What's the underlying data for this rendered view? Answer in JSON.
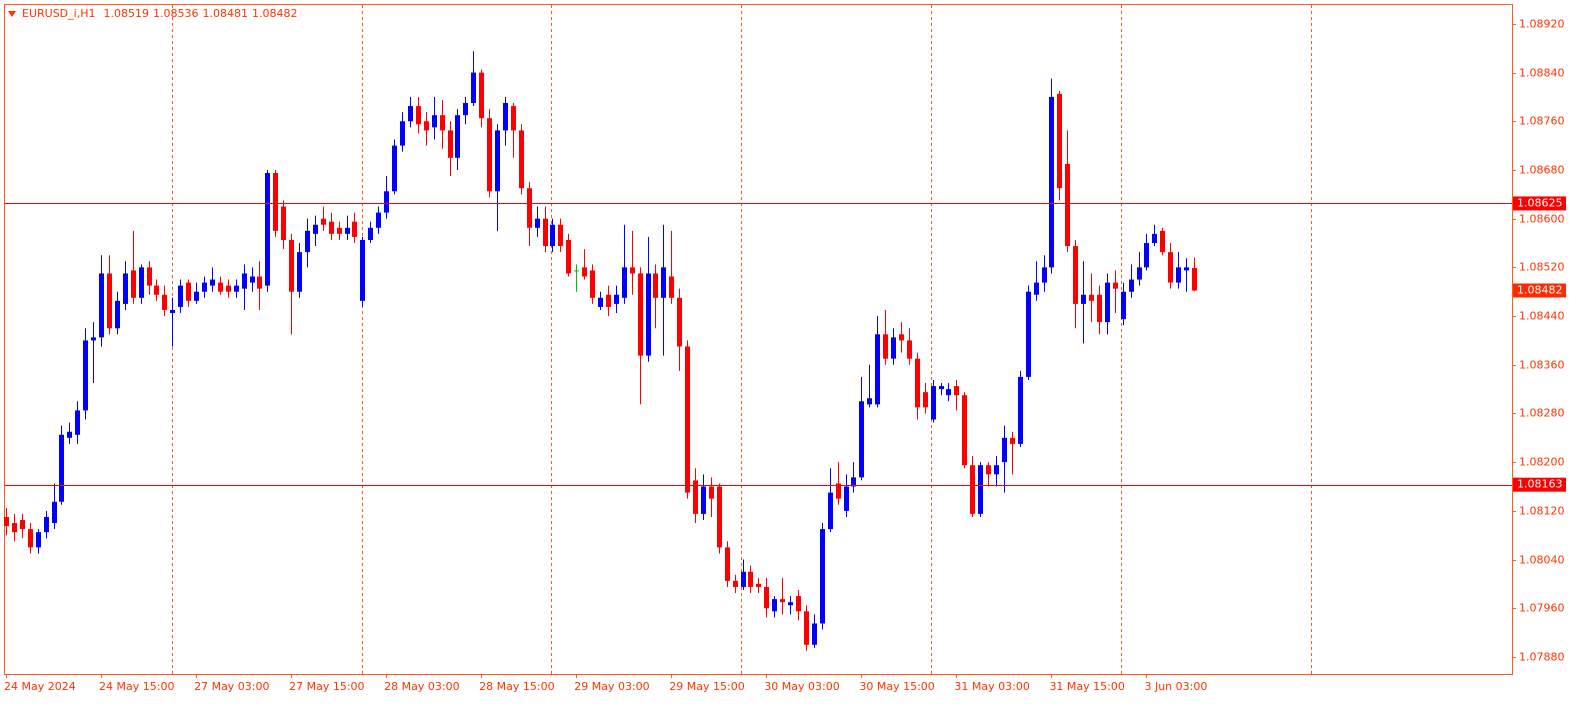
{
  "chart_data": {
    "type": "candlestick",
    "title": "EURUSD_i,H1",
    "categories": [
      "24 May 2024",
      null,
      null,
      null,
      null,
      null,
      null,
      null,
      null,
      null,
      null,
      null,
      "24 May 15:00",
      null,
      null,
      null,
      null,
      null,
      null,
      null,
      null,
      null,
      null,
      null,
      "27 May 03:00",
      null,
      null,
      null,
      null,
      null,
      null,
      null,
      null,
      null,
      null,
      null,
      "27 May 15:00",
      null,
      null,
      null,
      null,
      null,
      null,
      null,
      null,
      null,
      null,
      null,
      "28 May 03:00",
      null,
      null,
      null,
      null,
      null,
      null,
      null,
      null,
      null,
      null,
      null,
      "28 May 15:00",
      null,
      null,
      null,
      null,
      null,
      null,
      null,
      null,
      null,
      null,
      null,
      "29 May 03:00",
      null,
      null,
      null,
      null,
      null,
      null,
      null,
      null,
      null,
      null,
      null,
      "29 May 15:00",
      null,
      null,
      null,
      null,
      null,
      null,
      null,
      null,
      null,
      null,
      null,
      "30 May 03:00",
      null,
      null,
      null,
      null,
      null,
      null,
      null,
      null,
      null,
      null,
      null,
      "30 May 15:00",
      null,
      null,
      null,
      null,
      null,
      null,
      null,
      null,
      null,
      null,
      null,
      "31 May 03:00",
      null,
      null,
      null,
      null,
      null,
      null,
      null,
      null,
      null,
      null,
      null,
      "31 May 15:00",
      null,
      null,
      null,
      null,
      null,
      null,
      null,
      null,
      null,
      null,
      null,
      "3 Jun 03:00",
      null,
      null,
      null,
      null,
      null,
      null
    ],
    "open": [
      1.0811,
      1.081,
      1.08105,
      1.0809,
      1.0806,
      1.08085,
      1.081,
      1.08135,
      1.0824,
      1.08245,
      1.08285,
      1.084,
      1.08405,
      1.0851,
      1.0842,
      1.0846,
      1.08515,
      1.0847,
      1.0852,
      1.0849,
      1.08475,
      1.08445,
      1.08455,
      1.08495,
      1.08465,
      1.0848,
      1.0849,
      1.08495,
      1.0849,
      1.0848,
      1.08485,
      1.08495,
      1.08505,
      1.0849,
      1.08675,
      1.0862,
      1.08565,
      1.0848,
      1.08545,
      1.08575,
      1.086,
      1.08595,
      1.08585,
      1.08575,
      1.08595,
      1.08465,
      1.08565,
      1.08585,
      1.0861,
      1.08645,
      1.0872,
      1.0876,
      1.08785,
      1.0876,
      1.0875,
      1.0877,
      1.08745,
      1.087,
      1.0877,
      1.0879,
      1.0884,
      1.08765,
      1.08645,
      1.08745,
      1.08785,
      1.08745,
      1.0865,
      1.08585,
      1.086,
      1.08555,
      1.0859,
      1.08565,
      1.08515,
      1.0852,
      1.08515,
      1.08455,
      1.08475,
      1.0846,
      1.0847,
      1.0852,
      1.0851,
      1.08375,
      1.0851,
      1.0847,
      1.08505,
      1.0847,
      1.0839,
      1.0817,
      1.08115,
      1.0816,
      1.0816,
      1.0806,
      1.08005,
      1.07995,
      1.0802,
      1.08,
      1.07995,
      1.07955,
      1.07975,
      1.07965,
      1.0798,
      1.07955,
      1.079,
      1.07935,
      1.0809,
      1.08165,
      1.0812,
      1.0816,
      1.08175,
      1.08295,
      1.08295,
      1.0841,
      1.0837,
      1.0841,
      1.084,
      1.0837,
      1.08315,
      1.0827,
      1.0832,
      1.0831,
      1.08325,
      1.0831,
      1.08195,
      1.08115,
      1.08195,
      1.0818,
      1.082,
      1.0824,
      1.0823,
      1.0834,
      1.08475,
      1.08495,
      1.0852,
      1.08805,
      1.0869,
      1.08555,
      1.0846,
      1.08475,
      1.08475,
      1.0843,
      1.08495,
      1.08435,
      1.0848,
      1.085,
      1.0852,
      1.0856,
      1.0858,
      1.08545,
      1.08495,
      1.08515,
      1.08519
    ],
    "high": [
      1.08125,
      1.08115,
      1.08115,
      1.081,
      1.0809,
      1.0812,
      1.08165,
      1.0826,
      1.08265,
      1.083,
      1.0842,
      1.0843,
      1.0854,
      1.0854,
      1.0848,
      1.0853,
      1.0858,
      1.08525,
      1.0853,
      1.085,
      1.0849,
      1.0847,
      1.085,
      1.085,
      1.08495,
      1.08505,
      1.0852,
      1.08505,
      1.085,
      1.085,
      1.08525,
      1.0852,
      1.0853,
      1.0868,
      1.0868,
      1.0863,
      1.08575,
      1.0856,
      1.086,
      1.08605,
      1.0862,
      1.0861,
      1.08595,
      1.08605,
      1.0861,
      1.0857,
      1.08595,
      1.0862,
      1.0867,
      1.0873,
      1.08775,
      1.088,
      1.088,
      1.08775,
      1.088,
      1.08795,
      1.0876,
      1.0878,
      1.088,
      1.08875,
      1.08845,
      1.0878,
      1.08755,
      1.088,
      1.0879,
      1.08755,
      1.0866,
      1.0862,
      1.0862,
      1.086,
      1.086,
      1.08575,
      1.08525,
      1.0855,
      1.08525,
      1.0848,
      1.0849,
      1.0849,
      1.0859,
      1.0858,
      1.0852,
      1.0857,
      1.08525,
      1.0859,
      1.0858,
      1.08485,
      1.084,
      1.0819,
      1.0818,
      1.08175,
      1.08165,
      1.0807,
      1.08015,
      1.0804,
      1.0803,
      1.0801,
      1.0801,
      1.0798,
      1.0801,
      1.0798,
      1.0799,
      1.07965,
      1.0795,
      1.081,
      1.0819,
      1.082,
      1.0818,
      1.082,
      1.0834,
      1.0836,
      1.0844,
      1.0845,
      1.0842,
      1.0843,
      1.0842,
      1.0838,
      1.0833,
      1.08335,
      1.0833,
      1.0833,
      1.08335,
      1.08315,
      1.0821,
      1.082,
      1.082,
      1.0821,
      1.0826,
      1.0825,
      1.0835,
      1.0849,
      1.0853,
      1.0854,
      1.0883,
      1.0881,
      1.08745,
      1.08565,
      1.0853,
      1.0851,
      1.0849,
      1.0851,
      1.08515,
      1.08495,
      1.08525,
      1.08545,
      1.08575,
      1.0859,
      1.08585,
      1.0856,
      1.08545,
      1.08535,
      1.08536
    ],
    "low": [
      1.0808,
      1.0807,
      1.08075,
      1.0805,
      1.0805,
      1.08075,
      1.0809,
      1.0813,
      1.0823,
      1.0823,
      1.0827,
      1.0833,
      1.0839,
      1.0841,
      1.0841,
      1.0845,
      1.0846,
      1.0846,
      1.08475,
      1.08465,
      1.0844,
      1.0839,
      1.08445,
      1.08455,
      1.0846,
      1.0847,
      1.0848,
      1.08475,
      1.0847,
      1.0847,
      1.0845,
      1.0848,
      1.0845,
      1.0848,
      1.0857,
      1.0855,
      1.0841,
      1.0847,
      1.0852,
      1.08555,
      1.0858,
      1.08565,
      1.08565,
      1.08565,
      1.0856,
      1.08455,
      1.0856,
      1.08575,
      1.086,
      1.0864,
      1.0871,
      1.0875,
      1.0874,
      1.0872,
      1.0873,
      1.08715,
      1.0867,
      1.0868,
      1.08755,
      1.08785,
      1.0875,
      1.08635,
      1.0858,
      1.0872,
      1.087,
      1.0864,
      1.08555,
      1.0857,
      1.08545,
      1.08545,
      1.08545,
      1.08505,
      1.0848,
      1.085,
      1.0846,
      1.0845,
      1.0844,
      1.08445,
      1.0846,
      1.08475,
      1.08295,
      1.08365,
      1.0842,
      1.08375,
      1.0846,
      1.0835,
      1.0814,
      1.081,
      1.08105,
      1.0811,
      1.0805,
      1.07995,
      1.07985,
      1.0799,
      1.07985,
      1.07985,
      1.07945,
      1.07945,
      1.0795,
      1.0795,
      1.0794,
      1.0789,
      1.07895,
      1.07925,
      1.08085,
      1.0813,
      1.0811,
      1.0815,
      1.0817,
      1.0829,
      1.0829,
      1.0836,
      1.0836,
      1.0838,
      1.0836,
      1.0827,
      1.0828,
      1.08265,
      1.0831,
      1.083,
      1.08285,
      1.0819,
      1.0811,
      1.0811,
      1.0816,
      1.0816,
      1.0815,
      1.0818,
      1.08225,
      1.08335,
      1.08465,
      1.0848,
      1.0851,
      1.0863,
      1.08545,
      1.0842,
      1.08395,
      1.0843,
      1.0841,
      1.0841,
      1.08445,
      1.08425,
      1.0847,
      1.0849,
      1.08515,
      1.08555,
      1.0854,
      1.08485,
      1.08485,
      1.0848,
      1.08481
    ],
    "close": [
      1.08095,
      1.08085,
      1.0809,
      1.0806,
      1.08085,
      1.0811,
      1.08135,
      1.08245,
      1.0825,
      1.08285,
      1.084,
      1.08405,
      1.0851,
      1.0842,
      1.08465,
      1.0851,
      1.0847,
      1.0852,
      1.0849,
      1.08475,
      1.0845,
      1.0845,
      1.0849,
      1.08465,
      1.0848,
      1.08495,
      1.085,
      1.0848,
      1.0848,
      1.0849,
      1.0851,
      1.08505,
      1.08485,
      1.08675,
      1.0858,
      1.08565,
      1.0848,
      1.08545,
      1.0858,
      1.0859,
      1.0859,
      1.08575,
      1.08575,
      1.08585,
      1.0857,
      1.08565,
      1.08585,
      1.0861,
      1.08645,
      1.0872,
      1.0876,
      1.08785,
      1.08755,
      1.08745,
      1.0877,
      1.08745,
      1.087,
      1.0877,
      1.0879,
      1.0884,
      1.08765,
      1.08645,
      1.08745,
      1.0879,
      1.08745,
      1.0865,
      1.08585,
      1.086,
      1.08555,
      1.0859,
      1.08555,
      1.0851,
      1.08515,
      1.08505,
      1.0847,
      1.0847,
      1.08455,
      1.08475,
      1.0852,
      1.0851,
      1.08375,
      1.0851,
      1.0847,
      1.0852,
      1.0847,
      1.0839,
      1.0815,
      1.08115,
      1.0816,
      1.0814,
      1.0806,
      1.08005,
      1.07995,
      1.0802,
      1.07995,
      1.07995,
      1.0796,
      1.07975,
      1.0797,
      1.0797,
      1.07955,
      1.079,
      1.07935,
      1.0809,
      1.0815,
      1.0814,
      1.0816,
      1.08175,
      1.083,
      1.08305,
      1.0841,
      1.0837,
      1.08405,
      1.084,
      1.0837,
      1.0829,
      1.0829,
      1.08325,
      1.08325,
      1.0832,
      1.0831,
      1.08195,
      1.08115,
      1.08195,
      1.0818,
      1.08195,
      1.0824,
      1.0823,
      1.0834,
      1.0848,
      1.08495,
      1.0852,
      1.088,
      1.0865,
      1.08555,
      1.0846,
      1.08475,
      1.08465,
      1.0843,
      1.08495,
      1.08485,
      1.0848,
      1.085,
      1.0852,
      1.0856,
      1.08575,
      1.08545,
      1.08495,
      1.0852,
      1.0852,
      1.08482
    ],
    "up_color": "#0000ff",
    "down_color": "#ff0000",
    "doji_color": "#00c000",
    "ylim": [
      1.07852,
      1.08951
    ],
    "yticks": [
      {
        "value": 1.0892,
        "label": "1.08920"
      },
      {
        "value": 1.0884,
        "label": "1.08840"
      },
      {
        "value": 1.0876,
        "label": "1.08760"
      },
      {
        "value": 1.0868,
        "label": "1.08680"
      },
      {
        "value": 1.086,
        "label": "1.08600"
      },
      {
        "value": 1.0852,
        "label": "1.08520"
      },
      {
        "value": 1.0844,
        "label": "1.08440"
      },
      {
        "value": 1.0836,
        "label": "1.08360"
      },
      {
        "value": 1.0828,
        "label": "1.08280"
      },
      {
        "value": 1.082,
        "label": "1.08200"
      },
      {
        "value": 1.0812,
        "label": "1.08120"
      },
      {
        "value": 1.0804,
        "label": "1.08040"
      },
      {
        "value": 1.0796,
        "label": "1.07960"
      },
      {
        "value": 1.0788,
        "label": "1.07880"
      }
    ],
    "hlines": [
      1.08625,
      1.08163
    ]
  }
}
